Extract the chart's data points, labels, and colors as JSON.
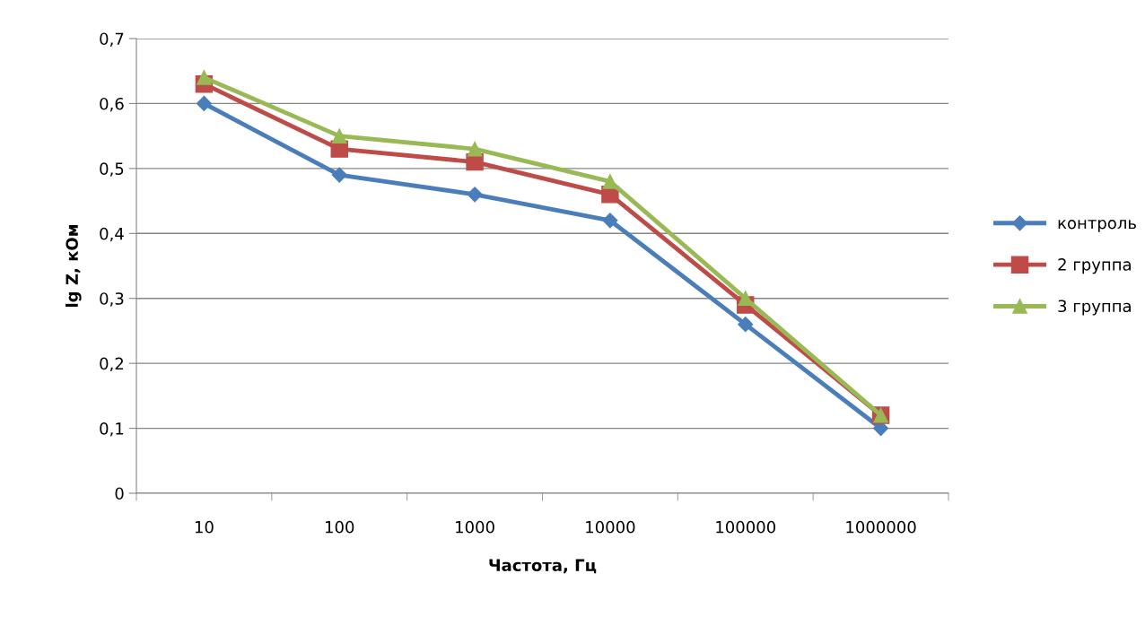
{
  "chart_data": {
    "type": "line",
    "xlabel": "Частота, Гц",
    "ylabel": "lg Z, кОм",
    "categories": [
      "10",
      "100",
      "1000",
      "10000",
      "100000",
      "1000000"
    ],
    "series": [
      {
        "name": "контроль",
        "color": "#4a7ebb",
        "marker": "diamond",
        "values": [
          0.6,
          0.49,
          0.46,
          0.42,
          0.26,
          0.1
        ]
      },
      {
        "name": "2 группа",
        "color": "#be4b48",
        "marker": "square",
        "values": [
          0.63,
          0.53,
          0.51,
          0.46,
          0.29,
          0.12
        ]
      },
      {
        "name": "3 группа",
        "color": "#98b954",
        "marker": "triangle",
        "values": [
          0.64,
          0.55,
          0.53,
          0.48,
          0.3,
          0.12
        ]
      }
    ],
    "ylim": [
      0,
      0.7
    ],
    "yticks": [
      0,
      {
        "value": 0.1,
        "label": "0,1"
      },
      {
        "value": 0.2,
        "label": "0,2"
      },
      {
        "value": 0.3,
        "label": "0,3"
      },
      {
        "value": 0.4,
        "label": "0,4"
      },
      {
        "value": 0.5,
        "label": "0,5"
      },
      {
        "value": 0.6,
        "label": "0,6"
      },
      {
        "value": 0.7,
        "label": "0,7"
      }
    ],
    "grid": "y",
    "legend": "right",
    "line_style": "solid"
  }
}
